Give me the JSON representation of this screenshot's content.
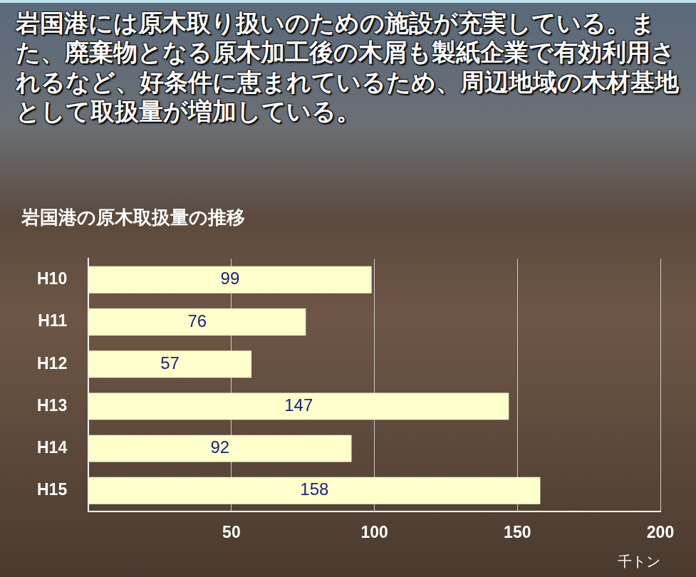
{
  "chart_data": {
    "type": "bar",
    "orientation": "horizontal",
    "subtitle": "岩国港には原木取り扱いのための施設が充実している。また、廃棄物となる原木加工後の木屑も製紙企業で有効利用されるなど、好条件に恵まれているため、周辺地域の木材基地として取扱量が増加している。",
    "title": "岩国港の原木取扱量の推移",
    "xlabel": "千トン",
    "categories": [
      "H10",
      "H11",
      "H12",
      "H13",
      "H14",
      "H15"
    ],
    "values": [
      99,
      76,
      57,
      147,
      92,
      158
    ],
    "color": "#ffffcc",
    "xlim": [
      0,
      200
    ],
    "xticks": [
      50,
      100,
      150,
      200
    ],
    "grid": true,
    "data_labels": true
  }
}
